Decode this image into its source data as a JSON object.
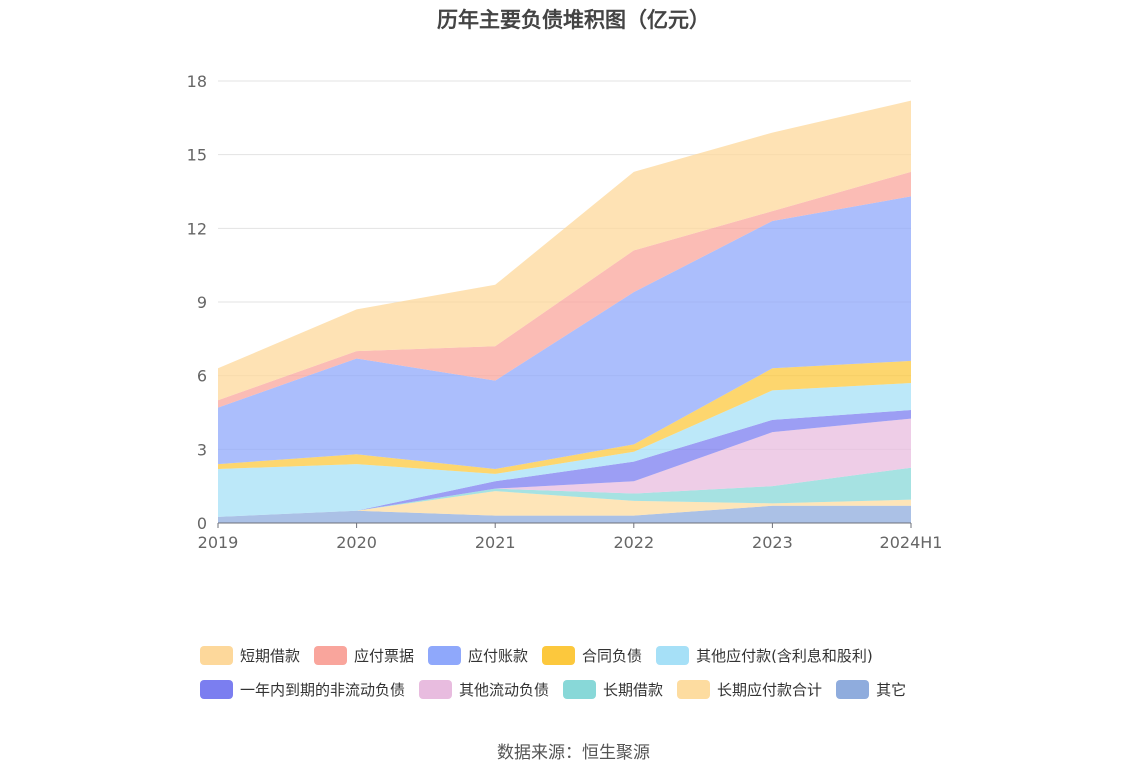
{
  "title": "历年主要负债堆积图（亿元）",
  "source": "数据来源：恒生聚源",
  "chart_data": {
    "type": "area",
    "stacked": true,
    "title": "历年主要负债堆积图（亿元）",
    "categories": [
      "2019",
      "2020",
      "2021",
      "2022",
      "2023",
      "2024H1"
    ],
    "ylim": [
      0,
      18
    ],
    "yticks": [
      "0",
      "3",
      "6",
      "9",
      "12",
      "15",
      "18"
    ],
    "grid": true,
    "legend_position": "bottom",
    "series": [
      {
        "name": "其它",
        "color": "#8facdd",
        "values": [
          0.25,
          0.5,
          0.3,
          0.3,
          0.7,
          0.7
        ]
      },
      {
        "name": "长期应付款合计",
        "color": "#fddca0",
        "values": [
          0.0,
          0.0,
          1.0,
          0.6,
          0.1,
          0.25
        ]
      },
      {
        "name": "长期借款",
        "color": "#88d8d8",
        "values": [
          0.0,
          0.0,
          0.1,
          0.3,
          0.7,
          1.3
        ]
      },
      {
        "name": "其他流动负债",
        "color": "#e8bcdf",
        "values": [
          0.0,
          0.0,
          0.0,
          0.5,
          2.2,
          2.0
        ]
      },
      {
        "name": "一年内到期的非流动负债",
        "color": "#7b7ef0",
        "values": [
          0.0,
          0.0,
          0.3,
          0.8,
          0.5,
          0.35
        ]
      },
      {
        "name": "其他应付款(含利息和股利)",
        "color": "#a6e0f7",
        "values": [
          1.95,
          1.9,
          0.3,
          0.4,
          1.2,
          1.1
        ]
      },
      {
        "name": "合同负债",
        "color": "#fcc83d",
        "values": [
          0.2,
          0.4,
          0.2,
          0.3,
          0.9,
          0.9
        ]
      },
      {
        "name": "应付账款",
        "color": "#8fa8fb",
        "values": [
          2.3,
          3.9,
          3.6,
          6.2,
          6.0,
          6.7
        ]
      },
      {
        "name": "应付票据",
        "color": "#f9a59c",
        "values": [
          0.3,
          0.3,
          1.4,
          1.7,
          0.4,
          1.0
        ]
      },
      {
        "name": "短期借款",
        "color": "#fdd89b",
        "values": [
          1.3,
          1.7,
          2.5,
          3.2,
          3.2,
          2.9
        ]
      }
    ]
  },
  "legend": {
    "rows": [
      [
        {
          "label": "短期借款",
          "color": "#fdd89b"
        },
        {
          "label": "应付票据",
          "color": "#f9a59c"
        },
        {
          "label": "应付账款",
          "color": "#8fa8fb"
        },
        {
          "label": "合同负债",
          "color": "#fcc83d"
        },
        {
          "label": "其他应付款(含利息和股利)",
          "color": "#a6e0f7"
        }
      ],
      [
        {
          "label": "一年内到期的非流动负债",
          "color": "#7b7ef0"
        },
        {
          "label": "其他流动负债",
          "color": "#e8bcdf"
        },
        {
          "label": "长期借款",
          "color": "#88d8d8"
        },
        {
          "label": "长期应付款合计",
          "color": "#fddca0"
        },
        {
          "label": "其它",
          "color": "#8facdd"
        }
      ]
    ]
  }
}
